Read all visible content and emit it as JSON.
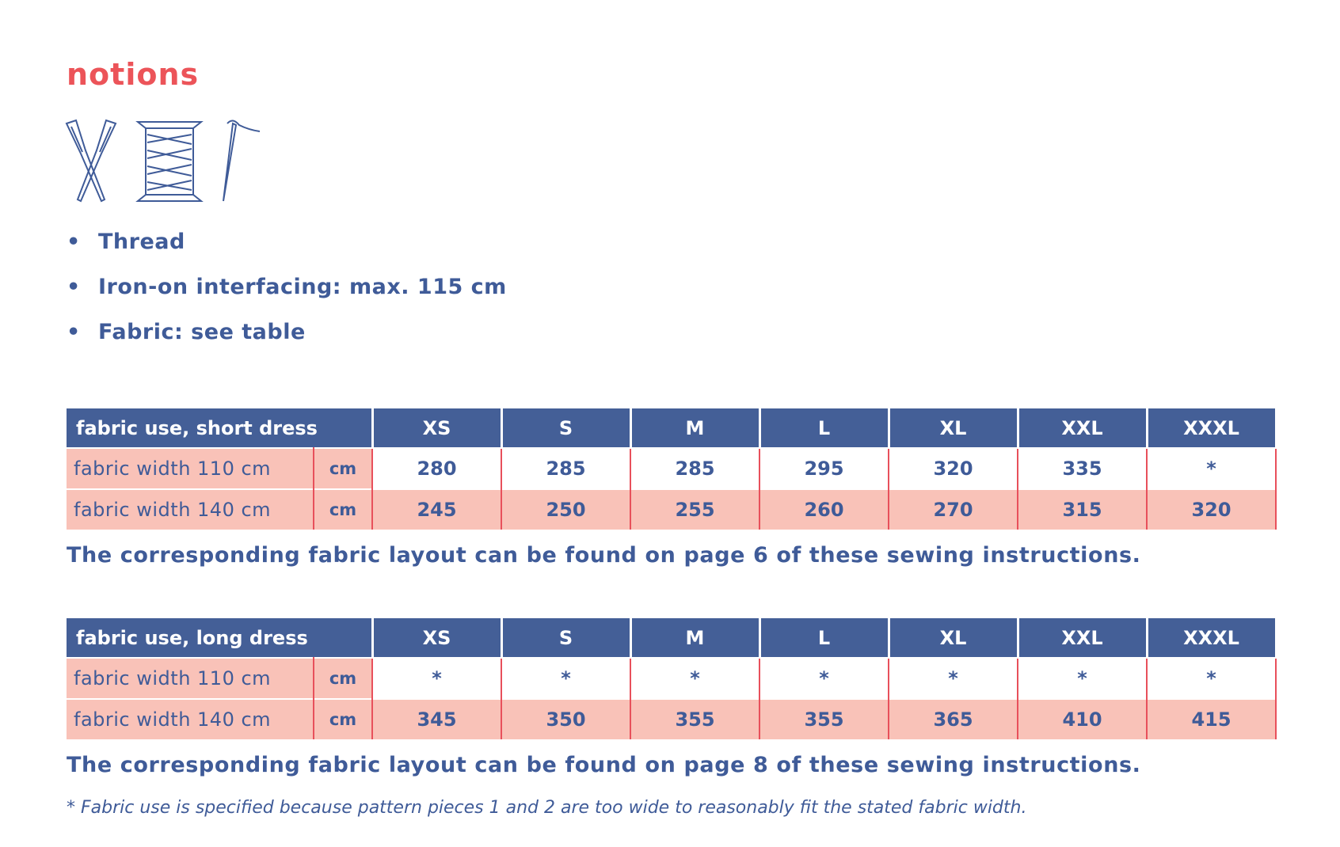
{
  "title": "notions",
  "bullets": [
    "Thread",
    "Iron-on interfacing: max. 115 cm",
    "Fabric: see table"
  ],
  "tables": [
    {
      "header": [
        "fabric use, short dress",
        "XS",
        "S",
        "M",
        "L",
        "XL",
        "XXL",
        "XXXL"
      ],
      "rows": [
        [
          "fabric width 110 cm",
          "cm",
          280,
          285,
          285,
          295,
          320,
          335,
          "*"
        ],
        [
          "fabric width 140 cm",
          "cm",
          245,
          250,
          255,
          260,
          270,
          315,
          320
        ]
      ],
      "note": "The corresponding fabric layout can be found on page 6 of these sewing instructions."
    },
    {
      "header": [
        "fabric use, long dress",
        "XS",
        "S",
        "M",
        "L",
        "XL",
        "XXL",
        "XXXL"
      ],
      "rows": [
        [
          "fabric width 110 cm",
          "cm",
          "*",
          "*",
          "*",
          "*",
          "*",
          "*",
          "*"
        ],
        [
          "fabric width 140 cm",
          "cm",
          345,
          350,
          355,
          355,
          365,
          410,
          415
        ]
      ],
      "note": "The corresponding fabric layout can be found on page 8 of these sewing instructions."
    }
  ],
  "footnote": "* Fabric use is specified because pattern pieces 1 and 2 are too wide to reasonably fit the stated fabric width."
}
